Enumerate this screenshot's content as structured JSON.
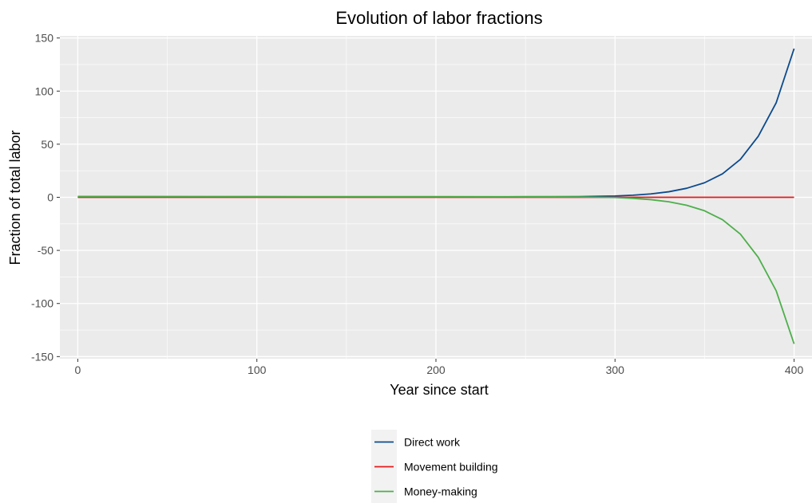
{
  "chart_data": {
    "type": "line",
    "title": "Evolution of labor fractions",
    "xlabel": "Year since start",
    "ylabel": "Fraction of total labor",
    "xlim": [
      -10,
      410
    ],
    "ylim": [
      -152,
      152
    ],
    "x_ticks": [
      0,
      100,
      200,
      300,
      400
    ],
    "y_ticks": [
      -150,
      -100,
      -50,
      0,
      50,
      100,
      150
    ],
    "x_tick_labels": [
      "0",
      "100",
      "200",
      "300",
      "400"
    ],
    "y_tick_labels": [
      "-150",
      "-100",
      "-50",
      "0",
      "50",
      "100",
      "150"
    ],
    "grid": true,
    "legend_position": "bottom",
    "series": [
      {
        "name": "Direct work",
        "color": "#0c4a8c",
        "x": [
          0,
          100,
          200,
          250,
          280,
          300,
          310,
          320,
          330,
          340,
          350,
          360,
          370,
          380,
          390,
          400
        ],
        "y": [
          0.2,
          0.3,
          0.4,
          0.5,
          0.6,
          1.2,
          2.0,
          3.2,
          5.2,
          8.5,
          13.7,
          22.1,
          35.7,
          57.5,
          89.0,
          140.0
        ]
      },
      {
        "name": "Movement building",
        "color": "#e31a1c",
        "x": [
          0,
          100,
          200,
          300,
          400
        ],
        "y": [
          0,
          0,
          0,
          0,
          0
        ]
      },
      {
        "name": "Money-making",
        "color": "#4daf4a",
        "x": [
          0,
          100,
          200,
          250,
          280,
          300,
          310,
          320,
          330,
          340,
          350,
          360,
          370,
          380,
          390,
          400
        ],
        "y": [
          0.8,
          0.7,
          0.6,
          0.5,
          0.4,
          -0.2,
          -1.0,
          -2.2,
          -4.2,
          -7.5,
          -12.7,
          -21.1,
          -34.7,
          -56.5,
          -88.0,
          -138.0
        ]
      }
    ]
  }
}
